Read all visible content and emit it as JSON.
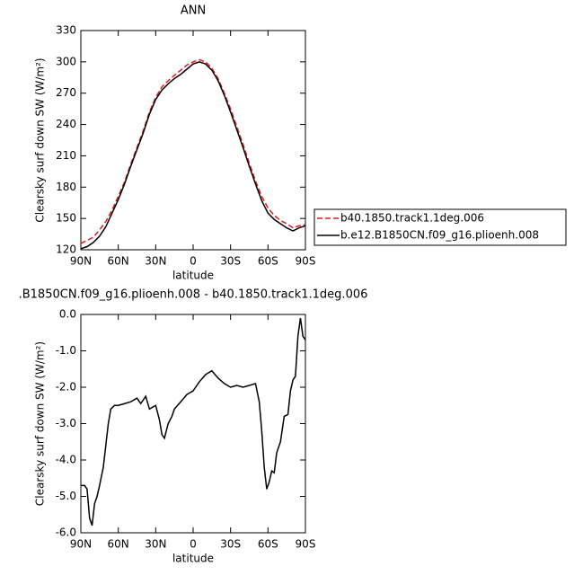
{
  "chart_data": [
    {
      "type": "line",
      "title": "ANN",
      "xlabel": "latitude",
      "ylabel": "Clearsky surf down SW (W/m²)",
      "x": [
        90,
        85,
        80,
        75,
        70,
        65,
        60,
        55,
        50,
        45,
        40,
        35,
        30,
        25,
        20,
        15,
        10,
        5,
        0,
        -5,
        -10,
        -15,
        -20,
        -25,
        -30,
        -35,
        -40,
        -45,
        -50,
        -55,
        -60,
        -65,
        -70,
        -75,
        -80,
        -85,
        -90
      ],
      "series": [
        {
          "name": "b40.1850.track1.1deg.006",
          "color": "#e41a1c",
          "dash": true,
          "values": [
            126,
            129,
            132,
            139,
            147,
            158,
            171,
            185,
            202,
            218,
            234,
            252,
            266,
            276,
            282,
            287,
            292,
            297,
            300,
            302,
            300,
            294,
            284,
            270,
            255,
            238,
            221,
            203,
            186,
            171,
            160,
            153,
            148,
            145,
            141,
            143,
            144
          ]
        },
        {
          "name": "b.e12.B1850CN.f09_g16.plioenh.008",
          "color": "#000000",
          "dash": false,
          "values": [
            121,
            123,
            127,
            133,
            142,
            155,
            168,
            183,
            200,
            216,
            232,
            250,
            264,
            273,
            279,
            284,
            288,
            293,
            298,
            300,
            298,
            292,
            282,
            268,
            252,
            235,
            218,
            200,
            183,
            167,
            155,
            149,
            145,
            141,
            138,
            141,
            143
          ]
        }
      ],
      "xlim": [
        90,
        -90
      ],
      "xticks": [
        {
          "value": 90,
          "label": "90N"
        },
        {
          "value": 60,
          "label": "60N"
        },
        {
          "value": 30,
          "label": "30N"
        },
        0,
        {
          "value": -30,
          "label": "30S"
        },
        {
          "value": -60,
          "label": "60S"
        },
        {
          "value": -90,
          "label": "90S"
        }
      ],
      "ylim": [
        120,
        330
      ],
      "yticks": [
        120,
        150,
        180,
        210,
        240,
        270,
        300,
        330
      ],
      "legend": "right"
    },
    {
      "type": "line",
      "title": ".B1850CN.f09_g16.plioenh.008 - b40.1850.track1.1deg.006",
      "xlabel": "latitude",
      "ylabel": "Clearsky surf down SW (W/m²)",
      "x": [
        90,
        87,
        85,
        83,
        81,
        79,
        77,
        75,
        72,
        70,
        68,
        66,
        63,
        60,
        55,
        50,
        45,
        42,
        38,
        35,
        30,
        27,
        25,
        23,
        20,
        17,
        15,
        10,
        5,
        0,
        -5,
        -10,
        -15,
        -20,
        -25,
        -30,
        -35,
        -40,
        -45,
        -50,
        -53,
        -55,
        -57,
        -59,
        -61,
        -63,
        -65,
        -67,
        -70,
        -73,
        -76,
        -78,
        -80,
        -82,
        -84,
        -86,
        -88,
        -90
      ],
      "values": [
        -4.7,
        -4.7,
        -4.8,
        -5.6,
        -5.8,
        -5.2,
        -5.0,
        -4.7,
        -4.2,
        -3.6,
        -3.0,
        -2.6,
        -2.5,
        -2.5,
        -2.45,
        -2.4,
        -2.3,
        -2.45,
        -2.25,
        -2.6,
        -2.5,
        -2.9,
        -3.3,
        -3.4,
        -3.0,
        -2.8,
        -2.6,
        -2.4,
        -2.2,
        -2.1,
        -1.85,
        -1.65,
        -1.55,
        -1.75,
        -1.9,
        -2.0,
        -1.95,
        -2.0,
        -1.95,
        -1.9,
        -2.4,
        -3.2,
        -4.2,
        -4.8,
        -4.6,
        -4.3,
        -4.35,
        -3.8,
        -3.5,
        -2.8,
        -2.75,
        -2.1,
        -1.8,
        -1.7,
        -0.6,
        -0.1,
        -0.6,
        -0.7
      ],
      "color": "#000000",
      "xlim": [
        90,
        -90
      ],
      "xticks": [
        {
          "value": 90,
          "label": "90N"
        },
        {
          "value": 60,
          "label": "60N"
        },
        {
          "value": 30,
          "label": "30N"
        },
        0,
        {
          "value": -30,
          "label": "30S"
        },
        {
          "value": -60,
          "label": "60S"
        },
        {
          "value": -90,
          "label": "90S"
        }
      ],
      "ylim": [
        -6,
        0
      ],
      "yticks": [
        {
          "value": -6,
          "label": "-6.0"
        },
        {
          "value": -5,
          "label": "-5.0"
        },
        {
          "value": -4,
          "label": "-4.0"
        },
        {
          "value": -3,
          "label": "-3.0"
        },
        {
          "value": -2,
          "label": "-2.0"
        },
        {
          "value": -1,
          "label": "-1.0"
        },
        {
          "value": 0,
          "label": "0.0"
        }
      ]
    }
  ]
}
